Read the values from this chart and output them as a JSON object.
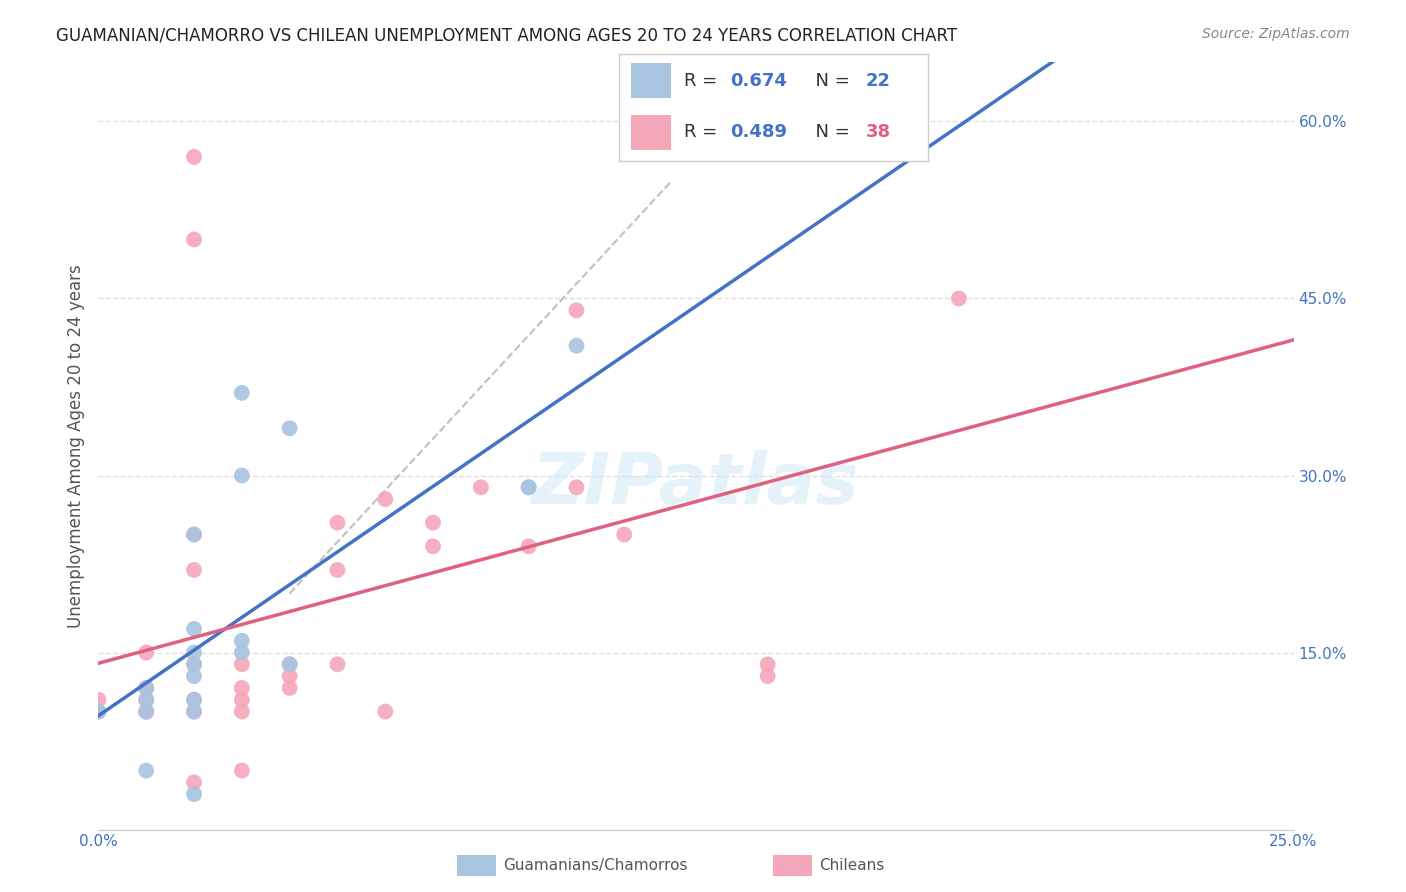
{
  "title": "GUAMANIAN/CHAMORRO VS CHILEAN UNEMPLOYMENT AMONG AGES 20 TO 24 YEARS CORRELATION CHART",
  "source": "Source: ZipAtlas.com",
  "ylabel": "Unemployment Among Ages 20 to 24 years",
  "x_min": 0.0,
  "x_max": 0.25,
  "y_min": 0.0,
  "y_max": 0.65,
  "x_ticks": [
    0.0,
    0.05,
    0.1,
    0.15,
    0.2,
    0.25
  ],
  "x_tick_labels": [
    "0.0%",
    "",
    "",
    "",
    "",
    "25.0%"
  ],
  "y_ticks": [
    0.0,
    0.15,
    0.3,
    0.45,
    0.6
  ],
  "y_tick_labels": [
    "",
    "15.0%",
    "30.0%",
    "45.0%",
    "60.0%"
  ],
  "guamanian_color": "#a8c4e0",
  "chilean_color": "#f4a7b9",
  "guamanian_line_color": "#4472c4",
  "chilean_line_color": "#e06080",
  "diagonal_color": "#c0c0c0",
  "legend_r_color": "#4472c4",
  "legend_n_chilean_color": "#e06080",
  "R_guamanian": 0.674,
  "N_guamanian": 22,
  "R_chilean": 0.489,
  "N_chilean": 38,
  "guamanian_x": [
    0.0,
    0.01,
    0.01,
    0.01,
    0.02,
    0.02,
    0.02,
    0.02,
    0.02,
    0.03,
    0.03,
    0.03,
    0.04,
    0.04,
    0.09,
    0.09,
    0.03,
    0.02,
    0.02,
    0.01,
    0.1,
    0.02
  ],
  "guamanian_y": [
    0.1,
    0.1,
    0.11,
    0.12,
    0.13,
    0.14,
    0.15,
    0.17,
    0.25,
    0.15,
    0.16,
    0.3,
    0.14,
    0.34,
    0.29,
    0.29,
    0.37,
    0.1,
    0.11,
    0.05,
    0.41,
    0.03
  ],
  "chilean_x": [
    0.0,
    0.0,
    0.01,
    0.01,
    0.01,
    0.01,
    0.02,
    0.02,
    0.02,
    0.02,
    0.02,
    0.03,
    0.03,
    0.03,
    0.03,
    0.04,
    0.04,
    0.04,
    0.05,
    0.05,
    0.05,
    0.06,
    0.06,
    0.07,
    0.07,
    0.08,
    0.09,
    0.1,
    0.1,
    0.11,
    0.14,
    0.14,
    0.02,
    0.02,
    0.18,
    0.02,
    0.03,
    0.01
  ],
  "chilean_y": [
    0.1,
    0.11,
    0.1,
    0.11,
    0.12,
    0.15,
    0.1,
    0.11,
    0.14,
    0.22,
    0.25,
    0.1,
    0.11,
    0.12,
    0.14,
    0.12,
    0.13,
    0.14,
    0.14,
    0.22,
    0.26,
    0.1,
    0.28,
    0.24,
    0.26,
    0.29,
    0.24,
    0.29,
    0.44,
    0.25,
    0.14,
    0.13,
    0.57,
    0.5,
    0.45,
    0.04,
    0.05,
    0.1
  ],
  "watermark": "ZIPatlas",
  "background_color": "#ffffff",
  "grid_color": "#e0e0e0"
}
